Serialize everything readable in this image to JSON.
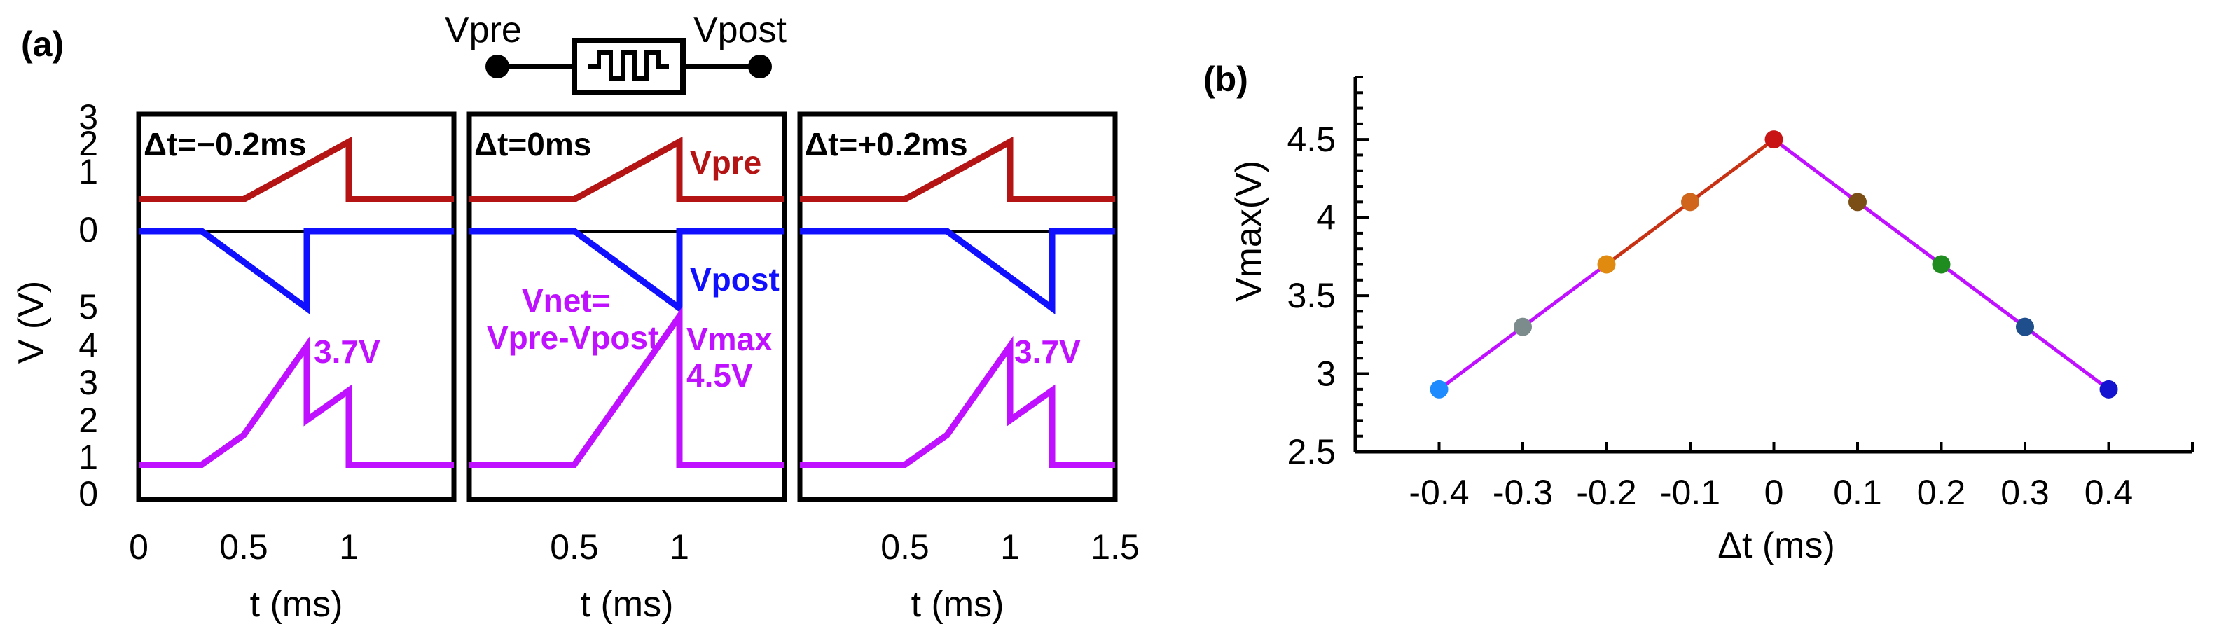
{
  "panel_a": {
    "label": "(a)",
    "ylabel": "V (V)",
    "xlabel": "t (ms)",
    "device": {
      "left_label": "Vpre",
      "right_label": "Vpost",
      "icon": "memristor-symbol"
    },
    "colors": {
      "vpre": "#b41414",
      "vpost": "#1010ff",
      "vnet": "#bf10ff",
      "axis": "#000000"
    },
    "top_yticks": [
      "3",
      "2",
      "1",
      "0"
    ],
    "mid_yticks": [
      "5"
    ],
    "bot_yticks": [
      "4",
      "3",
      "2",
      "1",
      "0"
    ],
    "xticks": [
      [
        "0",
        "0.5",
        "1"
      ],
      [
        "0.5",
        "1"
      ],
      [
        "0.5",
        "1",
        "1.5"
      ]
    ],
    "annotations": {
      "vpre": "Vpre",
      "vpost": "Vpost",
      "vnet_line1": "Vnet=",
      "vnet_line2": "Vpre-Vpost",
      "vmax_line1": "Vmax",
      "vmax_line2": "4.5V"
    },
    "subpanels": [
      {
        "dt_label": "Δt=−0.2ms",
        "peak_label": "3.7V"
      },
      {
        "dt_label": "Δt=0ms",
        "peak_label": ""
      },
      {
        "dt_label": "Δt=+0.2ms",
        "peak_label": "3.7V"
      }
    ]
  },
  "chart_data": [
    {
      "type": "line",
      "title": "",
      "xlabel": "t (ms)",
      "ylabel": "V (V)",
      "xlim": [
        0,
        1.5
      ],
      "series": [
        {
          "name": "Vpre",
          "panels": [
            {
              "dt_ms": -0.2,
              "x": [
                0,
                0.5,
                1.0,
                1.0,
                1.5
              ],
              "y": [
                0.5,
                0.5,
                2.5,
                0.5,
                0.5
              ]
            },
            {
              "dt_ms": 0,
              "x": [
                0,
                0.5,
                1.0,
                1.0,
                1.5
              ],
              "y": [
                0.5,
                0.5,
                2.5,
                0.5,
                0.5
              ]
            },
            {
              "dt_ms": 0.2,
              "x": [
                0,
                0.5,
                1.0,
                1.0,
                1.5
              ],
              "y": [
                0.5,
                0.5,
                2.5,
                0.5,
                0.5
              ]
            }
          ]
        },
        {
          "name": "Vpost",
          "panels": [
            {
              "dt_ms": -0.2,
              "x": [
                0,
                0.3,
                0.8,
                0.8,
                1.5
              ],
              "y": [
                0,
                0,
                -2,
                0,
                0
              ]
            },
            {
              "dt_ms": 0,
              "x": [
                0,
                0.5,
                1.0,
                1.0,
                1.5
              ],
              "y": [
                0,
                0,
                -2,
                0,
                0
              ]
            },
            {
              "dt_ms": 0.2,
              "x": [
                0,
                0.7,
                1.2,
                1.2,
                1.5
              ],
              "y": [
                0,
                0,
                -2,
                0,
                0
              ]
            }
          ]
        },
        {
          "name": "Vnet=Vpre-Vpost",
          "panels": [
            {
              "dt_ms": -0.2,
              "x": [
                0,
                0.3,
                0.5,
                0.8,
                0.8,
                1.0,
                1.0,
                1.5
              ],
              "y": [
                0.5,
                0.5,
                1.3,
                3.7,
                1.7,
                2.5,
                0.5,
                0.5
              ]
            },
            {
              "dt_ms": 0,
              "x": [
                0,
                0.5,
                1.0,
                1.0,
                1.5
              ],
              "y": [
                0.5,
                0.5,
                4.5,
                0.5,
                0.5
              ]
            },
            {
              "dt_ms": 0.2,
              "x": [
                0,
                0.5,
                0.7,
                1.0,
                1.0,
                1.2,
                1.2,
                1.5
              ],
              "y": [
                0.5,
                0.5,
                1.3,
                3.7,
                1.7,
                2.5,
                0.5,
                0.5
              ]
            }
          ]
        }
      ]
    },
    {
      "type": "scatter",
      "title": "",
      "panel_label": "(b)",
      "xlabel": "Δt (ms)",
      "ylabel": "Vmax(V)",
      "ylim": [
        2.5,
        4.9
      ],
      "xlim": [
        -0.5,
        0.5
      ],
      "xticks": [
        "-0.4",
        "-0.3",
        "-0.2",
        "-0.1",
        "0",
        "0.1",
        "0.2",
        "0.3",
        "0.4"
      ],
      "yticks": [
        "2.5",
        "3",
        "3.5",
        "4",
        "4.5"
      ],
      "x": [
        -0.4,
        -0.3,
        -0.2,
        -0.1,
        0,
        0.1,
        0.2,
        0.3,
        0.4
      ],
      "y": [
        2.9,
        3.3,
        3.7,
        4.1,
        4.5,
        4.1,
        3.7,
        3.3,
        2.9
      ],
      "point_colors": [
        "#1e8cff",
        "#7c8c8c",
        "#e08a10",
        "#d0661c",
        "#c81414",
        "#7a4e14",
        "#1e8c1e",
        "#1e4e8c",
        "#1414d0"
      ],
      "line_color_left": "#c83214",
      "line_color_right": "#bf10ff"
    }
  ]
}
